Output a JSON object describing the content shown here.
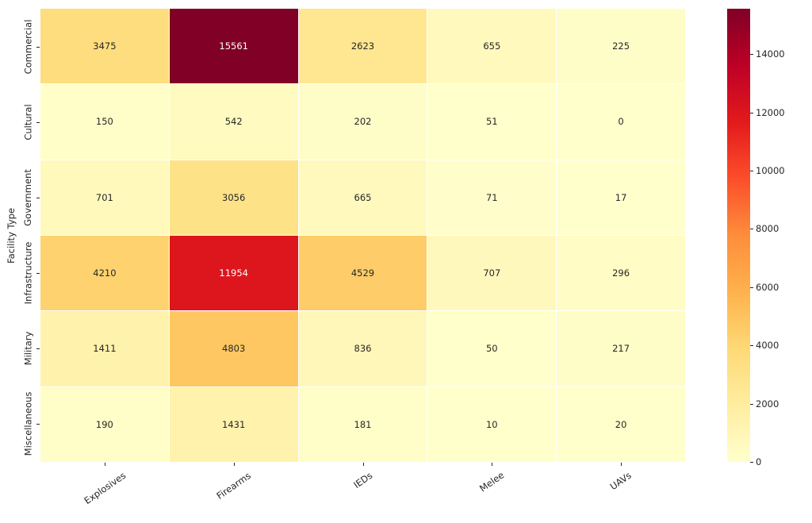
{
  "chart_data": {
    "type": "heatmap",
    "title": "",
    "xlabel": "",
    "ylabel": "Facility Type",
    "x_categories": [
      "Explosives",
      "Firearms",
      "IEDs",
      "Melee",
      "UAVs"
    ],
    "y_categories": [
      "Commercial",
      "Cultural",
      "Government",
      "Infrastructure",
      "Military",
      "Miscellaneous"
    ],
    "values": [
      [
        3475,
        15561,
        2623,
        655,
        225
      ],
      [
        150,
        542,
        202,
        51,
        0
      ],
      [
        701,
        3056,
        665,
        71,
        17
      ],
      [
        4210,
        11954,
        4529,
        707,
        296
      ],
      [
        1411,
        4803,
        836,
        50,
        217
      ],
      [
        190,
        1431,
        181,
        10,
        20
      ]
    ],
    "vmin": 0,
    "vmax": 15561,
    "colormap": "YlOrRd",
    "colormap_hex": [
      "#ffffcc",
      "#ffeda0",
      "#fed976",
      "#feb24c",
      "#fd8d3c",
      "#fc4e2a",
      "#e31a1c",
      "#bd0026",
      "#800026"
    ],
    "colorbar_ticks": [
      0,
      2000,
      4000,
      6000,
      8000,
      10000,
      12000,
      14000
    ],
    "annotation_color_dark": "#262626",
    "annotation_color_light": "#ffffff",
    "background_color": "#ffffff",
    "grid_line_color": "#ffffff",
    "legend_position": "right-colorbar",
    "x_tick_rotation_deg": 35,
    "y_tick_rotation_deg": 90
  }
}
